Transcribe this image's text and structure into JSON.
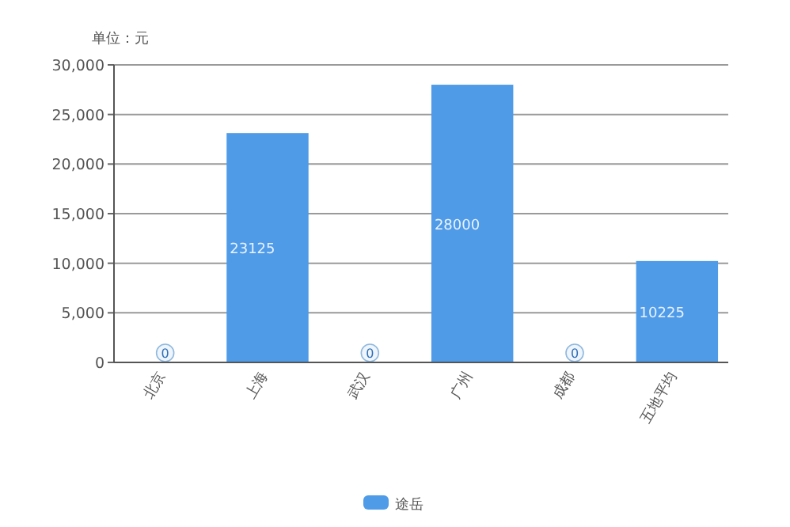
{
  "chart_data": {
    "type": "bar",
    "ylabel": "单位：元",
    "categories": [
      "北京",
      "上海",
      "武汉",
      "广州",
      "成都",
      "五地平均"
    ],
    "series": [
      {
        "name": "途岳",
        "color": "#4f9be8",
        "values": [
          0,
          23125,
          0,
          28000,
          0,
          10225
        ]
      }
    ],
    "ylim": [
      0,
      30000
    ],
    "yticks": [
      {
        "value": 0,
        "label": "0"
      },
      {
        "value": 5000,
        "label": "5,000"
      },
      {
        "value": 10000,
        "label": "10,000"
      },
      {
        "value": 15000,
        "label": "15,000"
      },
      {
        "value": 20000,
        "label": "20,000"
      },
      {
        "value": 25000,
        "label": "25,000"
      },
      {
        "value": 30000,
        "label": "30,000"
      }
    ],
    "grid": "y",
    "data_labels": true,
    "legend": "bottom"
  }
}
